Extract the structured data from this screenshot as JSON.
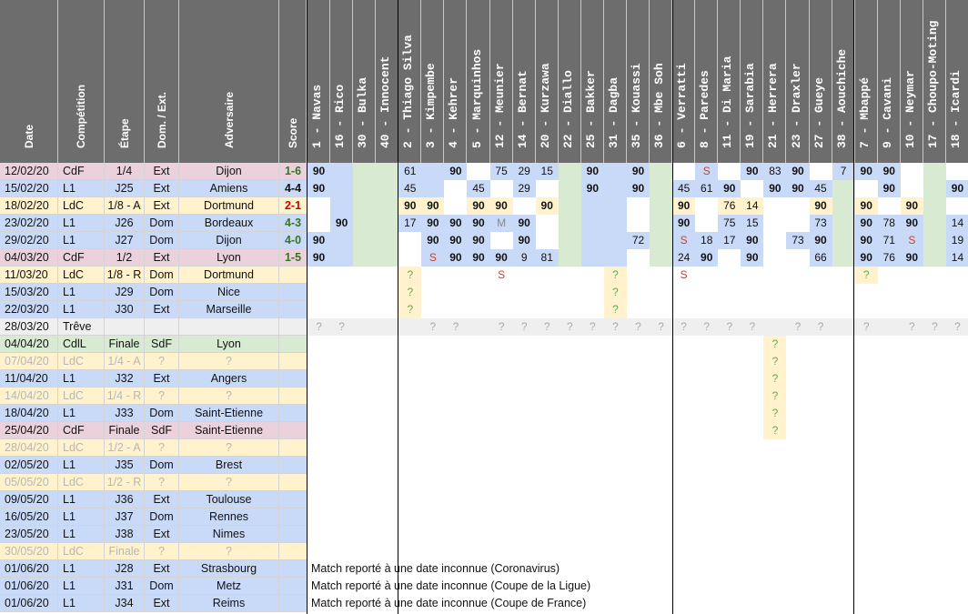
{
  "headers": {
    "date": "Date",
    "competition": "Compétition",
    "etape": "Étape",
    "domext": "Dom. / Ext.",
    "adversaire": "Adversaire",
    "score": "Score"
  },
  "players": [
    {
      "label": "1 - Navas",
      "group": "gk"
    },
    {
      "label": "16 - Rico",
      "group": "gk"
    },
    {
      "label": "30 - Bulka",
      "group": "gk"
    },
    {
      "label": "40 - Innocent",
      "group": "gk"
    },
    {
      "label": "2 - Thiago Silva",
      "group": "def"
    },
    {
      "label": "3 - Kimpembe",
      "group": "def"
    },
    {
      "label": "4 - Kehrer",
      "group": "def"
    },
    {
      "label": "5 - Marquinhos",
      "group": "def"
    },
    {
      "label": "12 - Meunier",
      "group": "def"
    },
    {
      "label": "14 - Bernat",
      "group": "def"
    },
    {
      "label": "20 - Kurzawa",
      "group": "def"
    },
    {
      "label": "22 - Diallo",
      "group": "def"
    },
    {
      "label": "25 - Bakker",
      "group": "def"
    },
    {
      "label": "31 - Dagba",
      "group": "def"
    },
    {
      "label": "35 - Kouassi",
      "group": "def"
    },
    {
      "label": "36 - Mbe Soh",
      "group": "def"
    },
    {
      "label": "6 - Verratti",
      "group": "mid"
    },
    {
      "label": "8 - Paredes",
      "group": "mid"
    },
    {
      "label": "11 - Di Maria",
      "group": "mid"
    },
    {
      "label": "19 - Sarabia",
      "group": "mid"
    },
    {
      "label": "21 - Herrera",
      "group": "mid"
    },
    {
      "label": "23 - Draxler",
      "group": "mid"
    },
    {
      "label": "27 - Gueye",
      "group": "mid"
    },
    {
      "label": "38 - Aouchiche",
      "group": "mid"
    },
    {
      "label": "7 - Mbappé",
      "group": "fwd"
    },
    {
      "label": "9 - Cavani",
      "group": "fwd"
    },
    {
      "label": "10 - Neymar",
      "group": "fwd"
    },
    {
      "label": "17 - Choupo-Moting",
      "group": "fwd"
    },
    {
      "label": "18 - Icardi",
      "group": "fwd"
    }
  ],
  "colors": {
    "header": "#6d6d6d",
    "L1": "#c9daf8",
    "CdF": "#ead1dc",
    "LdC": "#fff2cc",
    "CdlL": "#d9ead3",
    "Treve": "#efefef",
    "played_bg": "#c9daf8",
    "score_win": "#38761d",
    "score_loss": "#cc0000",
    "score_draw": "#111111",
    "minutes_bold_yellow": "#f1c232",
    "minutes_green": "#6aa84f",
    "sub_red": "#cc4125"
  },
  "matches": [
    {
      "date": "12/02/20",
      "comp": "CdF",
      "etape": "1/4",
      "domext": "Ext",
      "adv": "Dijon",
      "score": "1-6",
      "result": "win",
      "faded": false
    },
    {
      "date": "15/02/20",
      "comp": "L1",
      "etape": "J25",
      "domext": "Ext",
      "adv": "Amiens",
      "score": "4-4",
      "result": "draw",
      "faded": false
    },
    {
      "date": "18/02/20",
      "comp": "LdC",
      "etape": "1/8 - A",
      "domext": "Ext",
      "adv": "Dortmund",
      "score": "2-1",
      "result": "loss",
      "faded": false
    },
    {
      "date": "23/02/20",
      "comp": "L1",
      "etape": "J26",
      "domext": "Dom",
      "adv": "Bordeaux",
      "score": "4-3",
      "result": "win",
      "faded": false
    },
    {
      "date": "29/02/20",
      "comp": "L1",
      "etape": "J27",
      "domext": "Dom",
      "adv": "Dijon",
      "score": "4-0",
      "result": "win",
      "faded": false
    },
    {
      "date": "04/03/20",
      "comp": "CdF",
      "etape": "1/2",
      "domext": "Ext",
      "adv": "Lyon",
      "score": "1-5",
      "result": "win",
      "faded": false
    },
    {
      "date": "11/03/20",
      "comp": "LdC",
      "etape": "1/8 - R",
      "domext": "Dom",
      "adv": "Dortmund",
      "score": "",
      "result": "",
      "faded": false
    },
    {
      "date": "15/03/20",
      "comp": "L1",
      "etape": "J29",
      "domext": "Dom",
      "adv": "Nice",
      "score": "",
      "result": "",
      "faded": false
    },
    {
      "date": "22/03/20",
      "comp": "L1",
      "etape": "J30",
      "domext": "Ext",
      "adv": "Marseille",
      "score": "",
      "result": "",
      "faded": false
    },
    {
      "date": "28/03/20",
      "comp": "Trêve",
      "etape": "",
      "domext": "",
      "adv": "",
      "score": "",
      "result": "",
      "faded": false,
      "treve": true
    },
    {
      "date": "04/04/20",
      "comp": "CdlL",
      "etape": "Finale",
      "domext": "SdF",
      "adv": "Lyon",
      "score": "",
      "result": "",
      "faded": false
    },
    {
      "date": "07/04/20",
      "comp": "LdC",
      "etape": "1/4 - A",
      "domext": "?",
      "adv": "?",
      "score": "",
      "result": "",
      "faded": true
    },
    {
      "date": "11/04/20",
      "comp": "L1",
      "etape": "J32",
      "domext": "Ext",
      "adv": "Angers",
      "score": "",
      "result": "",
      "faded": false
    },
    {
      "date": "14/04/20",
      "comp": "LdC",
      "etape": "1/4 - R",
      "domext": "?",
      "adv": "?",
      "score": "",
      "result": "",
      "faded": true
    },
    {
      "date": "18/04/20",
      "comp": "L1",
      "etape": "J33",
      "domext": "Dom",
      "adv": "Saint-Etienne",
      "score": "",
      "result": "",
      "faded": false
    },
    {
      "date": "25/04/20",
      "comp": "CdF",
      "etape": "Finale",
      "domext": "SdF",
      "adv": "Saint-Etienne",
      "score": "",
      "result": "",
      "faded": false
    },
    {
      "date": "28/04/20",
      "comp": "LdC",
      "etape": "1/2 - A",
      "domext": "?",
      "adv": "?",
      "score": "",
      "result": "",
      "faded": true
    },
    {
      "date": "02/05/20",
      "comp": "L1",
      "etape": "J35",
      "domext": "Dom",
      "adv": "Brest",
      "score": "",
      "result": "",
      "faded": false
    },
    {
      "date": "05/05/20",
      "comp": "LdC",
      "etape": "1/2 - R",
      "domext": "?",
      "adv": "?",
      "score": "",
      "result": "",
      "faded": true
    },
    {
      "date": "09/05/20",
      "comp": "L1",
      "etape": "J36",
      "domext": "Ext",
      "adv": "Toulouse",
      "score": "",
      "result": "",
      "faded": false
    },
    {
      "date": "16/05/20",
      "comp": "L1",
      "etape": "J37",
      "domext": "Dom",
      "adv": "Rennes",
      "score": "",
      "result": "",
      "faded": false
    },
    {
      "date": "23/05/20",
      "comp": "L1",
      "etape": "J38",
      "domext": "Ext",
      "adv": "Nimes",
      "score": "",
      "result": "",
      "faded": false
    },
    {
      "date": "30/05/20",
      "comp": "LdC",
      "etape": "Finale",
      "domext": "?",
      "adv": "?",
      "score": "",
      "result": "",
      "faded": true
    },
    {
      "date": "01/06/20",
      "comp": "L1",
      "etape": "J28",
      "domext": "Ext",
      "adv": "Strasbourg",
      "score": "",
      "result": "",
      "faded": false,
      "note": "Match reporté à une date inconnue (Coronavirus)"
    },
    {
      "date": "01/06/20",
      "comp": "L1",
      "etape": "J31",
      "domext": "Dom",
      "adv": "Metz",
      "score": "",
      "result": "",
      "faded": false,
      "note": "Match reporté à une date inconnue (Coupe de la Ligue)"
    },
    {
      "date": "01/06/20",
      "comp": "L1",
      "etape": "J34",
      "domext": "Ext",
      "adv": "Reims",
      "score": "",
      "result": "",
      "faded": false,
      "note": "Match reporté à une date inconnue (Coupe de France)"
    }
  ],
  "player_cells": [
    [
      "90",
      "",
      "",
      "",
      "61",
      "",
      "90",
      "",
      "75",
      "29",
      "15",
      "",
      "90",
      "",
      "90",
      "",
      "",
      "S",
      "",
      "90",
      "83",
      "90",
      "",
      "7",
      "90",
      "90",
      "",
      "",
      ""
    ],
    [
      "90",
      "",
      "",
      "",
      "45",
      "",
      "",
      "45",
      "",
      "29",
      "",
      "",
      "90",
      "",
      "90",
      "",
      "45",
      "61",
      "90",
      "",
      "90",
      "90",
      "45",
      "",
      "",
      "90",
      "",
      "",
      "90"
    ],
    [
      "",
      "",
      "",
      "",
      "90",
      "90",
      "",
      "90",
      "90",
      "",
      "90",
      "",
      "",
      "",
      "",
      "",
      "90",
      "",
      "76",
      "14",
      "",
      "",
      "90",
      "",
      "90",
      "",
      "90",
      "",
      ""
    ],
    [
      "",
      "90",
      "",
      "",
      "17",
      "90",
      "90",
      "90",
      "M",
      "90",
      "",
      "",
      "",
      "",
      "",
      "",
      "90",
      "",
      "75",
      "15",
      "",
      "",
      "73",
      "",
      "90",
      "78",
      "90",
      "",
      "14"
    ],
    [
      "90",
      "",
      "",
      "",
      "",
      "90",
      "90",
      "90",
      "",
      "90",
      "",
      "",
      "",
      "",
      "72",
      "",
      "S",
      "18",
      "17",
      "90",
      "",
      "73",
      "90",
      "",
      "90",
      "71",
      "S",
      "",
      "19"
    ],
    [
      "90",
      "",
      "",
      "",
      "",
      "S",
      "90",
      "90",
      "90",
      "9",
      "81",
      "",
      "",
      "",
      "",
      "",
      "24",
      "90",
      "",
      "90",
      "",
      "",
      "66",
      "",
      "90",
      "76",
      "90",
      "",
      "14"
    ],
    [
      "",
      "",
      "",
      "",
      "?",
      "",
      "",
      "",
      "S",
      "",
      "",
      "",
      "",
      "?",
      "",
      "",
      "S",
      "",
      "",
      "",
      "",
      "",
      "",
      "",
      "?",
      "",
      "",
      "",
      ""
    ],
    [
      "",
      "",
      "",
      "",
      "?",
      "",
      "",
      "",
      "",
      "",
      "",
      "",
      "",
      "?",
      "",
      "",
      "",
      "",
      "",
      "",
      "",
      "",
      "",
      "",
      "",
      "",
      "",
      "",
      ""
    ],
    [
      "",
      "",
      "",
      "",
      "?",
      "",
      "",
      "",
      "",
      "",
      "",
      "",
      "",
      "?",
      "",
      "",
      "",
      "",
      "",
      "",
      "",
      "",
      "",
      "",
      "",
      "",
      "",
      "",
      ""
    ],
    [
      "?",
      "?",
      "",
      "",
      "",
      "?",
      "?",
      "",
      "?",
      "?",
      "?",
      "?",
      "?",
      "?",
      "?",
      "?",
      "?",
      "?",
      "?",
      "?",
      "",
      "?",
      "?",
      "",
      "?",
      "",
      "?",
      "?",
      "?"
    ],
    [
      "",
      "",
      "",
      "",
      "",
      "",
      "",
      "",
      "",
      "",
      "",
      "",
      "",
      "",
      "",
      "",
      "",
      "",
      "",
      "",
      "?",
      "",
      "",
      "",
      "",
      "",
      "",
      "",
      ""
    ],
    [
      "",
      "",
      "",
      "",
      "",
      "",
      "",
      "",
      "",
      "",
      "",
      "",
      "",
      "",
      "",
      "",
      "",
      "",
      "",
      "",
      "?",
      "",
      "",
      "",
      "",
      "",
      "",
      "",
      ""
    ],
    [
      "",
      "",
      "",
      "",
      "",
      "",
      "",
      "",
      "",
      "",
      "",
      "",
      "",
      "",
      "",
      "",
      "",
      "",
      "",
      "",
      "?",
      "",
      "",
      "",
      "",
      "",
      "",
      "",
      ""
    ],
    [
      "",
      "",
      "",
      "",
      "",
      "",
      "",
      "",
      "",
      "",
      "",
      "",
      "",
      "",
      "",
      "",
      "",
      "",
      "",
      "",
      "?",
      "",
      "",
      "",
      "",
      "",
      "",
      "",
      ""
    ],
    [
      "",
      "",
      "",
      "",
      "",
      "",
      "",
      "",
      "",
      "",
      "",
      "",
      "",
      "",
      "",
      "",
      "",
      "",
      "",
      "",
      "?",
      "",
      "",
      "",
      "",
      "",
      "",
      "",
      ""
    ],
    [
      "",
      "",
      "",
      "",
      "",
      "",
      "",
      "",
      "",
      "",
      "",
      "",
      "",
      "",
      "",
      "",
      "",
      "",
      "",
      "",
      "?",
      "",
      "",
      "",
      "",
      "",
      "",
      "",
      ""
    ],
    [
      "",
      "",
      "",
      "",
      "",
      "",
      "",
      "",
      "",
      "",
      "",
      "",
      "",
      "",
      "",
      "",
      "",
      "",
      "",
      "",
      "",
      "",
      "",
      "",
      "",
      "",
      "",
      "",
      ""
    ],
    [
      "",
      "",
      "",
      "",
      "",
      "",
      "",
      "",
      "",
      "",
      "",
      "",
      "",
      "",
      "",
      "",
      "",
      "",
      "",
      "",
      "",
      "",
      "",
      "",
      "",
      "",
      "",
      "",
      ""
    ],
    [
      "",
      "",
      "",
      "",
      "",
      "",
      "",
      "",
      "",
      "",
      "",
      "",
      "",
      "",
      "",
      "",
      "",
      "",
      "",
      "",
      "",
      "",
      "",
      "",
      "",
      "",
      "",
      "",
      ""
    ],
    [
      "",
      "",
      "",
      "",
      "",
      "",
      "",
      "",
      "",
      "",
      "",
      "",
      "",
      "",
      "",
      "",
      "",
      "",
      "",
      "",
      "",
      "",
      "",
      "",
      "",
      "",
      "",
      "",
      ""
    ],
    [
      "",
      "",
      "",
      "",
      "",
      "",
      "",
      "",
      "",
      "",
      "",
      "",
      "",
      "",
      "",
      "",
      "",
      "",
      "",
      "",
      "",
      "",
      "",
      "",
      "",
      "",
      "",
      "",
      ""
    ],
    [
      "",
      "",
      "",
      "",
      "",
      "",
      "",
      "",
      "",
      "",
      "",
      "",
      "",
      "",
      "",
      "",
      "",
      "",
      "",
      "",
      "",
      "",
      "",
      "",
      "",
      "",
      "",
      "",
      ""
    ],
    [
      "",
      "",
      "",
      "",
      "",
      "",
      "",
      "",
      "",
      "",
      "",
      "",
      "",
      "",
      "",
      "",
      "",
      "",
      "",
      "",
      "",
      "",
      "",
      "",
      "",
      "",
      "",
      "",
      ""
    ],
    [
      "",
      "",
      "",
      "",
      "",
      "",
      "",
      "",
      "",
      "",
      "",
      "",
      "",
      "",
      "",
      "",
      "",
      "",
      "",
      "",
      "",
      "",
      "",
      "",
      "",
      "",
      "",
      "",
      ""
    ],
    [
      "",
      "",
      "",
      "",
      "",
      "",
      "",
      "",
      "",
      "",
      "",
      "",
      "",
      "",
      "",
      "",
      "",
      "",
      "",
      "",
      "",
      "",
      "",
      "",
      "",
      "",
      "",
      "",
      ""
    ],
    [
      "",
      "",
      "",
      "",
      "",
      "",
      "",
      "",
      "",
      "",
      "",
      "",
      "",
      "",
      "",
      "",
      "",
      "",
      "",
      "",
      "",
      "",
      "",
      "",
      "",
      "",
      "",
      "",
      ""
    ]
  ]
}
